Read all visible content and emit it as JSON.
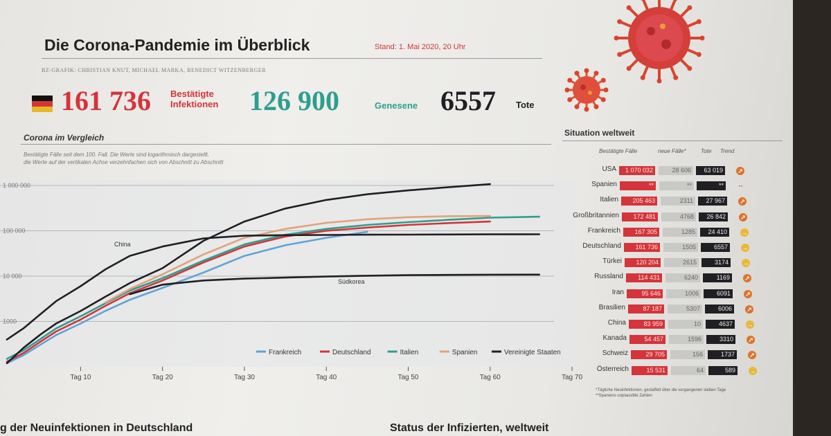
{
  "header": {
    "title": "Die Corona-Pandemie im Überblick",
    "stand": "Stand: 1. Mai 2020, 20 Uhr",
    "credits": "BZ-GRAFIK: CHRISTIAN KNUT, MICHAEL MARKA, BENEDICT WITZENBERGER"
  },
  "stats": {
    "infected_value": "161 736",
    "infected_label_1": "Bestätigte",
    "infected_label_2": "Infektionen",
    "recovered_value": "126 900",
    "recovered_label": "Genesene",
    "dead_value": "6557",
    "dead_label": "Tote"
  },
  "colors": {
    "red": "#d4343a",
    "green": "#2e9e8e",
    "dark": "#1f1f24",
    "blue": "#5fa3d6",
    "orange": "#e2a27a",
    "trend_orange": "#e0722a",
    "trend_yellow": "#e8b83a"
  },
  "comparison": {
    "heading": "Corona im Vergleich",
    "note_1": "Bestätigte Fälle seit dem 100. Fall. Die Werte sind logarithmisch dargestellt,",
    "note_2": "die Werte auf der vertikalen Achse verzehnfachen sich von Abschnitt zu Abschnitt"
  },
  "chart_data": {
    "type": "line",
    "y_scale": "log",
    "ylim": [
      100,
      1000000
    ],
    "xlim": [
      1,
      70
    ],
    "y_ticks": [
      "1 000 000",
      "100 000",
      "10 000",
      "1000"
    ],
    "x_ticks": [
      "Tag 10",
      "Tag 20",
      "Tag 30",
      "Tag 40",
      "Tag 50",
      "Tag 60",
      "Tag 70"
    ],
    "x": [
      1,
      3,
      5,
      7,
      10,
      13,
      16,
      20,
      25,
      30,
      35,
      40,
      45,
      50,
      55,
      60,
      66
    ],
    "series": [
      {
        "name": "Frankreich",
        "color": "#5fa3d6",
        "values": [
          120,
          180,
          300,
          500,
          900,
          1700,
          3000,
          5500,
          12000,
          28000,
          48000,
          70000,
          95000,
          null,
          null,
          null,
          null
        ]
      },
      {
        "name": "Deutschland",
        "color": "#d4343a",
        "values": [
          130,
          200,
          350,
          600,
          1100,
          2200,
          4200,
          8000,
          20000,
          45000,
          75000,
          100000,
          118000,
          135000,
          148000,
          160000,
          null
        ]
      },
      {
        "name": "Italien",
        "color": "#2e9e8e",
        "values": [
          150,
          230,
          400,
          700,
          1300,
          2500,
          4800,
          9000,
          22000,
          50000,
          82000,
          110000,
          135000,
          155000,
          175000,
          195000,
          205000
        ]
      },
      {
        "name": "Spanien",
        "color": "#e2a27a",
        "values": [
          null,
          null,
          null,
          null,
          null,
          2600,
          5200,
          11000,
          30000,
          70000,
          110000,
          150000,
          180000,
          200000,
          210000,
          213000,
          null
        ]
      },
      {
        "name": "Vereinigte Staaten",
        "color": "#1f1f24",
        "values": [
          120,
          260,
          500,
          900,
          1700,
          3500,
          7000,
          15000,
          60000,
          160000,
          310000,
          480000,
          640000,
          780000,
          920000,
          1070000,
          null
        ]
      },
      {
        "label": "China",
        "color": "#1f1f24",
        "values": [
          400,
          700,
          1400,
          2800,
          6000,
          14000,
          28000,
          45000,
          68000,
          78000,
          80000,
          81000,
          82000,
          82500,
          83000,
          83500,
          83900
        ]
      },
      {
        "label": "Südkorea",
        "color": "#1f1f24",
        "values": [
          null,
          null,
          null,
          null,
          null,
          null,
          4000,
          6500,
          8000,
          8800,
          9300,
          9800,
          10200,
          10500,
          10650,
          10750,
          10800
        ]
      }
    ],
    "annotations": [
      "China",
      "Südkorea"
    ],
    "legend_position": "bottom-right"
  },
  "world": {
    "heading": "Situation weltweit",
    "col_cases": "Bestätigte Fälle",
    "col_new": "neue Fälle*",
    "col_dead": "Tote",
    "col_trend": "Trend",
    "rows": [
      {
        "country": "USA",
        "cases": "1 070 032",
        "new": "28 606",
        "dead": "63 019",
        "trend": "up"
      },
      {
        "country": "Spanien",
        "cases": "**",
        "new": "**",
        "dead": "**",
        "trend": "none"
      },
      {
        "country": "Italien",
        "cases": "205 463",
        "new": "2311",
        "dead": "27 967",
        "trend": "up"
      },
      {
        "country": "Großbritannien",
        "cases": "172 481",
        "new": "4768",
        "dead": "26 842",
        "trend": "up"
      },
      {
        "country": "Frankreich",
        "cases": "167 305",
        "new": "1285",
        "dead": "24 410",
        "trend": "flat"
      },
      {
        "country": "Deutschland",
        "cases": "161 736",
        "new": "1505",
        "dead": "6557",
        "trend": "flat"
      },
      {
        "country": "Türkei",
        "cases": "120 204",
        "new": "2615",
        "dead": "3174",
        "trend": "flat"
      },
      {
        "country": "Russland",
        "cases": "114 431",
        "new": "6240",
        "dead": "1169",
        "trend": "up"
      },
      {
        "country": "Iran",
        "cases": "95 646",
        "new": "1006",
        "dead": "6091",
        "trend": "up"
      },
      {
        "country": "Brasilien",
        "cases": "87 187",
        "new": "5307",
        "dead": "6006",
        "trend": "up"
      },
      {
        "country": "China",
        "cases": "83 959",
        "new": "10",
        "dead": "4637",
        "trend": "flat"
      },
      {
        "country": "Kanada",
        "cases": "54 457",
        "new": "1596",
        "dead": "3310",
        "trend": "up"
      },
      {
        "country": "Schweiz",
        "cases": "29 705",
        "new": "156",
        "dead": "1737",
        "trend": "up"
      },
      {
        "country": "Österreich",
        "cases": "15 531",
        "new": "64",
        "dead": "589",
        "trend": "flat"
      }
    ],
    "footnote_1": "*Tägliche Neuinfektionen, gestaffelt über die vergangenen sieben Tage",
    "footnote_2": "**Spaniens unplausible Zahlen"
  },
  "bottom": {
    "left_heading": "g der Neuinfektionen in Deutschland",
    "right_heading": "Status der Infizierten, weltweit"
  }
}
